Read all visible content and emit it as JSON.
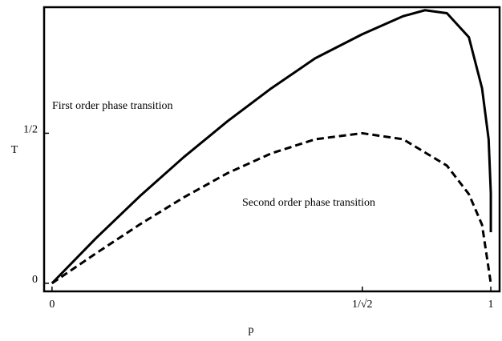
{
  "chart_data": {
    "type": "line",
    "xlabel": "p",
    "ylabel": "T",
    "annotations": [
      "First order phase transition",
      "Second order phase transition"
    ],
    "xlim": [
      -0.018,
      1.02
    ],
    "ylim": [
      -0.027,
      0.92
    ],
    "xticks": [
      0,
      {
        "value": 0.7071,
        "label": "1/√2"
      },
      1
    ],
    "yticks": [
      0,
      {
        "value": 0.5,
        "label": "1/2"
      }
    ],
    "series": [
      {
        "name": "First order phase transition",
        "color": "#000",
        "dash": false,
        "x": [
          0,
          0.1,
          0.2,
          0.3,
          0.4,
          0.5,
          0.6,
          0.7071,
          0.8,
          0.85,
          0.9,
          0.95,
          0.98,
          0.995,
          1,
          1
        ],
        "values": [
          0,
          0.15,
          0.29,
          0.42,
          0.54,
          0.65,
          0.75,
          0.83,
          0.89,
          0.91,
          0.9,
          0.82,
          0.65,
          0.48,
          0.3,
          0.17
        ]
      },
      {
        "name": "Second order phase transition",
        "color": "#000",
        "dash": true,
        "x": [
          0,
          0.1,
          0.2,
          0.3,
          0.4,
          0.5,
          0.6,
          0.7071,
          0.8,
          0.9,
          0.95,
          0.98,
          1
        ],
        "values": [
          0,
          0.0995,
          0.196,
          0.286,
          0.367,
          0.433,
          0.48,
          0.5,
          0.48,
          0.392,
          0.297,
          0.195,
          0
        ]
      }
    ]
  }
}
